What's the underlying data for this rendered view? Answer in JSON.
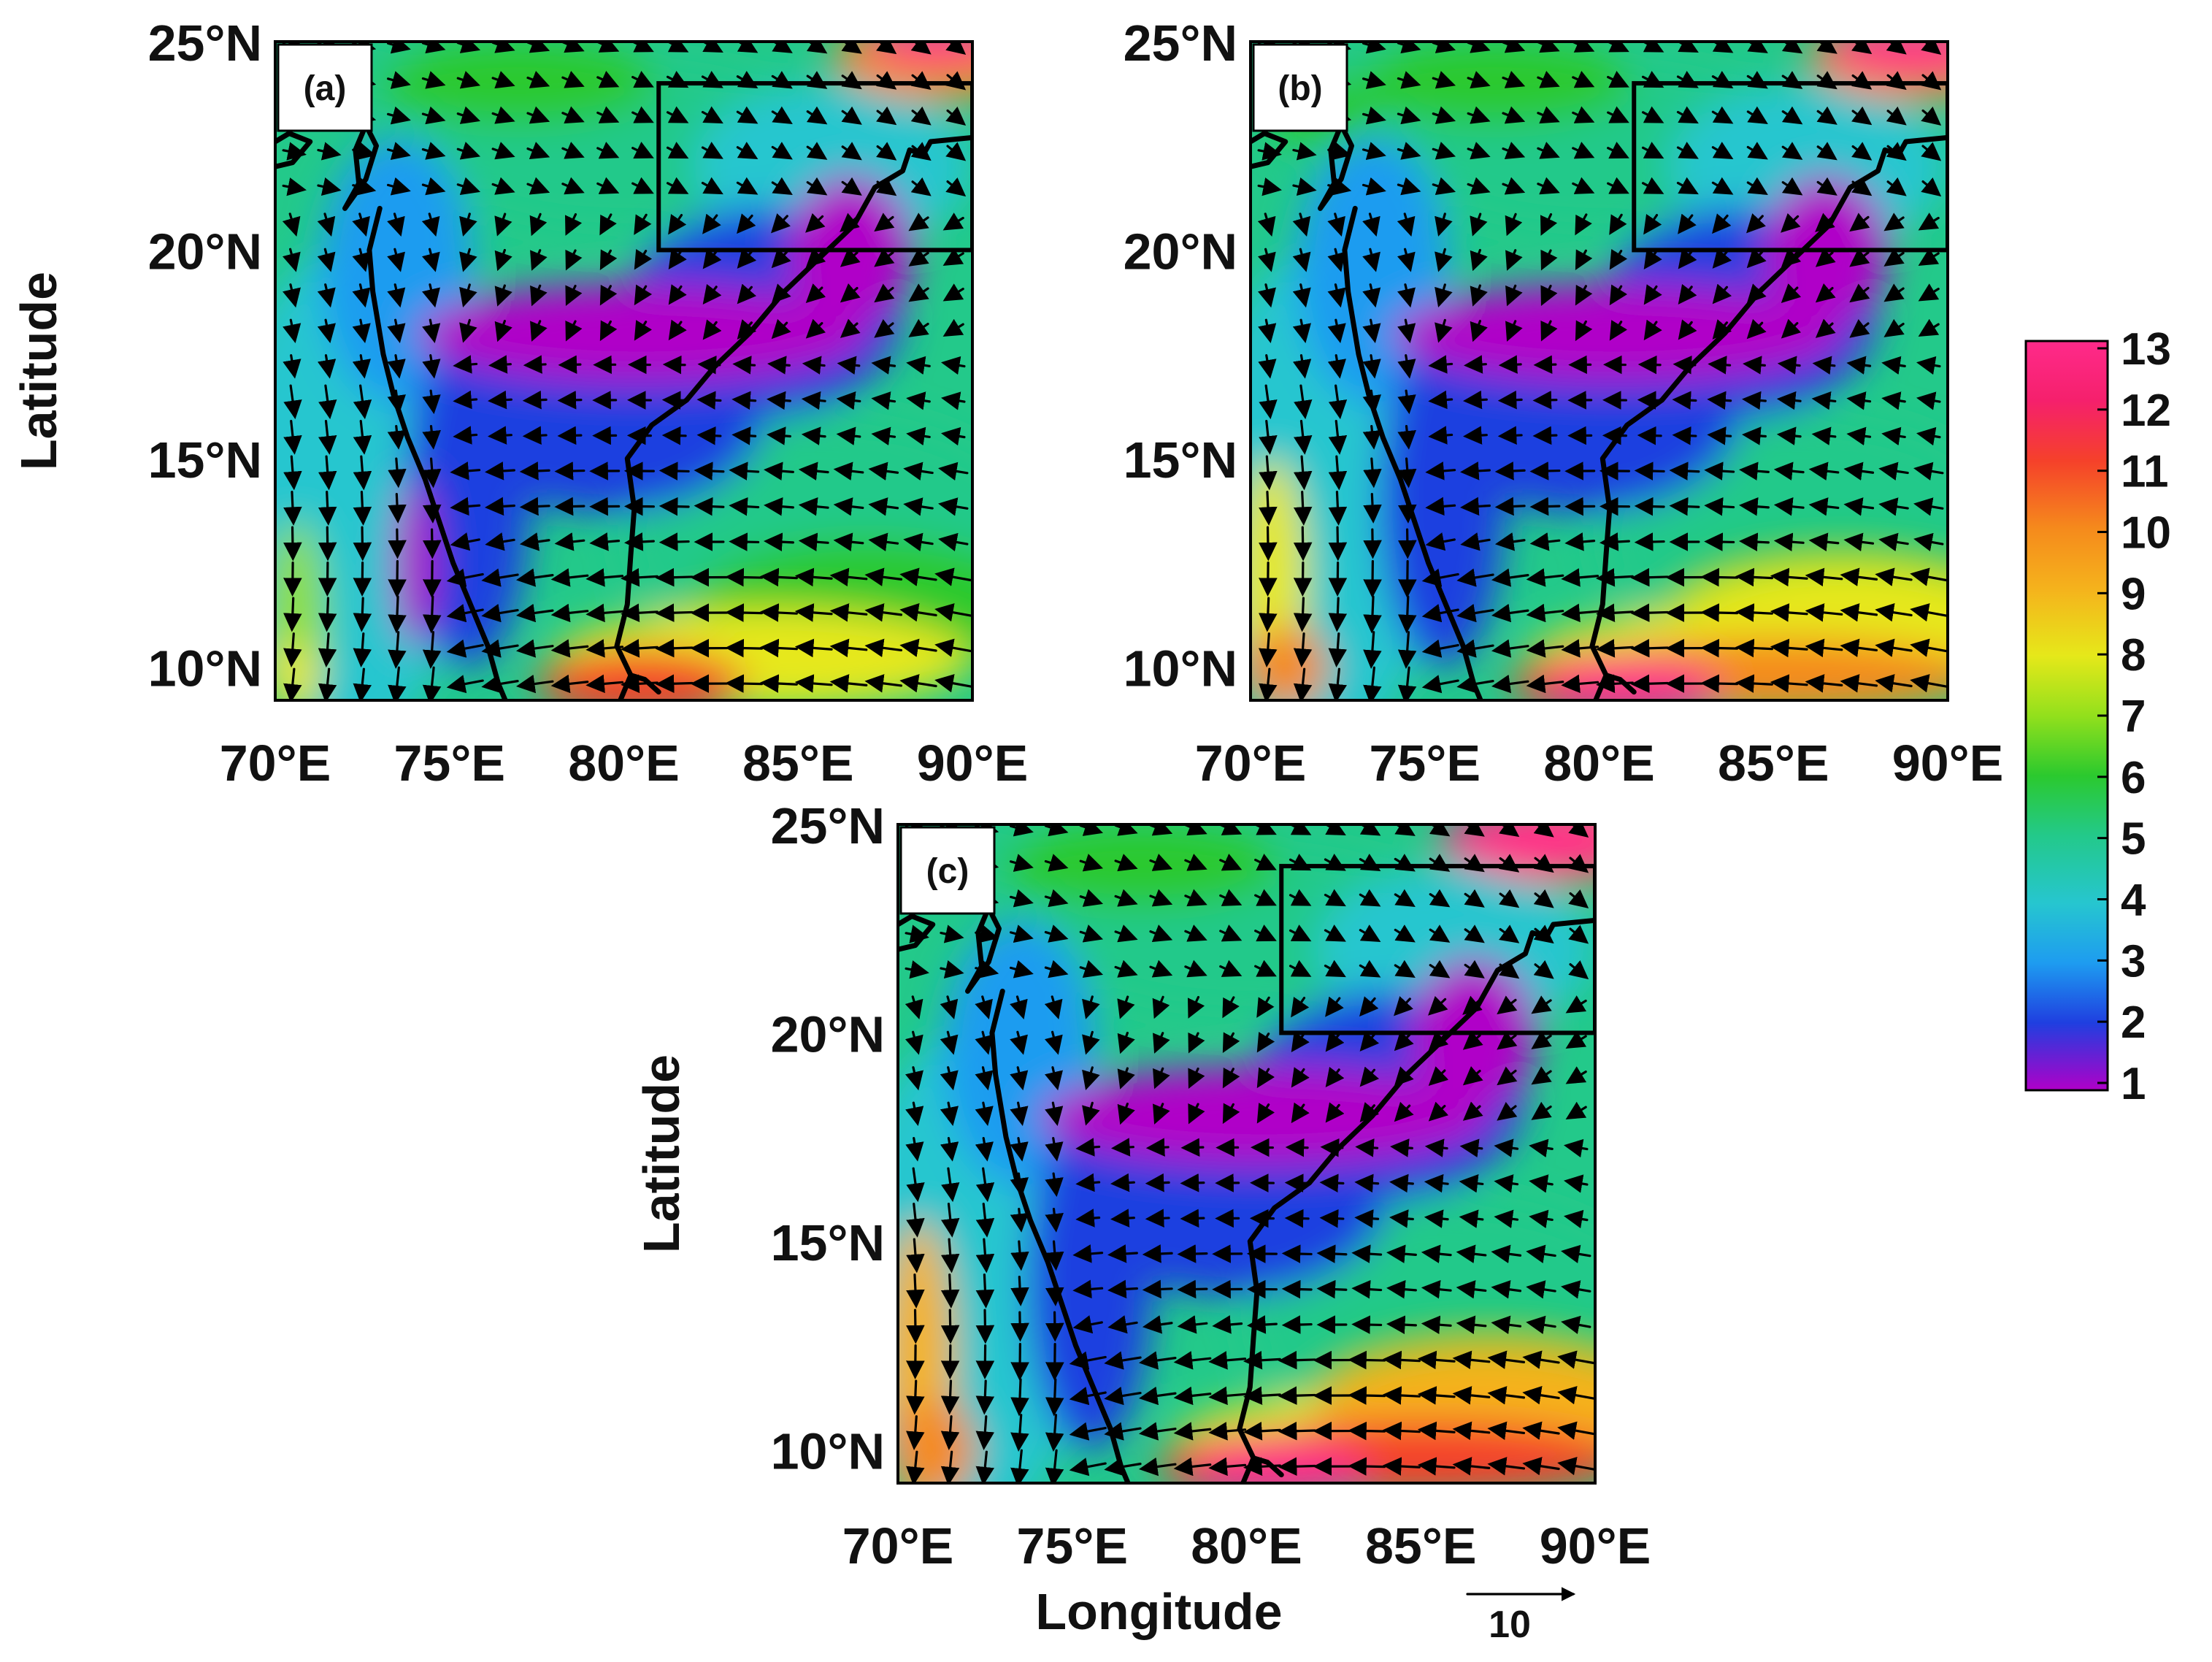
{
  "panels": [
    {
      "id": "a",
      "label": "(a)",
      "ylabel": "Latitude",
      "xlabel": ""
    },
    {
      "id": "b",
      "label": "(b)",
      "ylabel": "",
      "xlabel": ""
    },
    {
      "id": "c",
      "label": "(c)",
      "ylabel": "Latitude",
      "xlabel": "Longitude"
    }
  ],
  "axes": {
    "lon_ticks": [
      70,
      75,
      80,
      85,
      90
    ],
    "lon_tick_labels": [
      "70°E",
      "75°E",
      "80°E",
      "85°E",
      "90°E"
    ],
    "lat_ticks": [
      10,
      15,
      20,
      25
    ],
    "lat_tick_labels": [
      "10°N",
      "15°N",
      "20°N",
      "25°N"
    ],
    "lon_range": [
      70,
      90
    ],
    "lat_range": [
      9.2,
      25
    ]
  },
  "colorbar": {
    "min": 1,
    "max": 13,
    "tick_labels": [
      "13",
      "12",
      "11",
      "10",
      "9",
      "8",
      "7",
      "6",
      "5",
      "4",
      "3",
      "2",
      "1"
    ],
    "colors": [
      "#b000c8",
      "#1f3fe0",
      "#1e9cf0",
      "#26c6cf",
      "#23c98a",
      "#2bc92e",
      "#93e01c",
      "#e6e81a",
      "#f5b21c",
      "#f58a1c",
      "#f5412a",
      "#f5206c",
      "#ff2a8a"
    ]
  },
  "reference_vector": {
    "label": "10",
    "magnitude": 10
  },
  "study_box": {
    "lon": [
      81,
      90
    ],
    "lat": [
      20,
      24
    ]
  },
  "chart_data": {
    "type": "heatmap",
    "title": "",
    "xlabel": "Longitude",
    "ylabel": "Latitude",
    "xlim": [
      70,
      90
    ],
    "ylim": [
      9.2,
      25
    ],
    "colorbar_range": [
      1,
      13
    ],
    "series": [
      {
        "name": "(a)"
      },
      {
        "name": "(b)"
      },
      {
        "name": "(c)"
      }
    ]
  }
}
